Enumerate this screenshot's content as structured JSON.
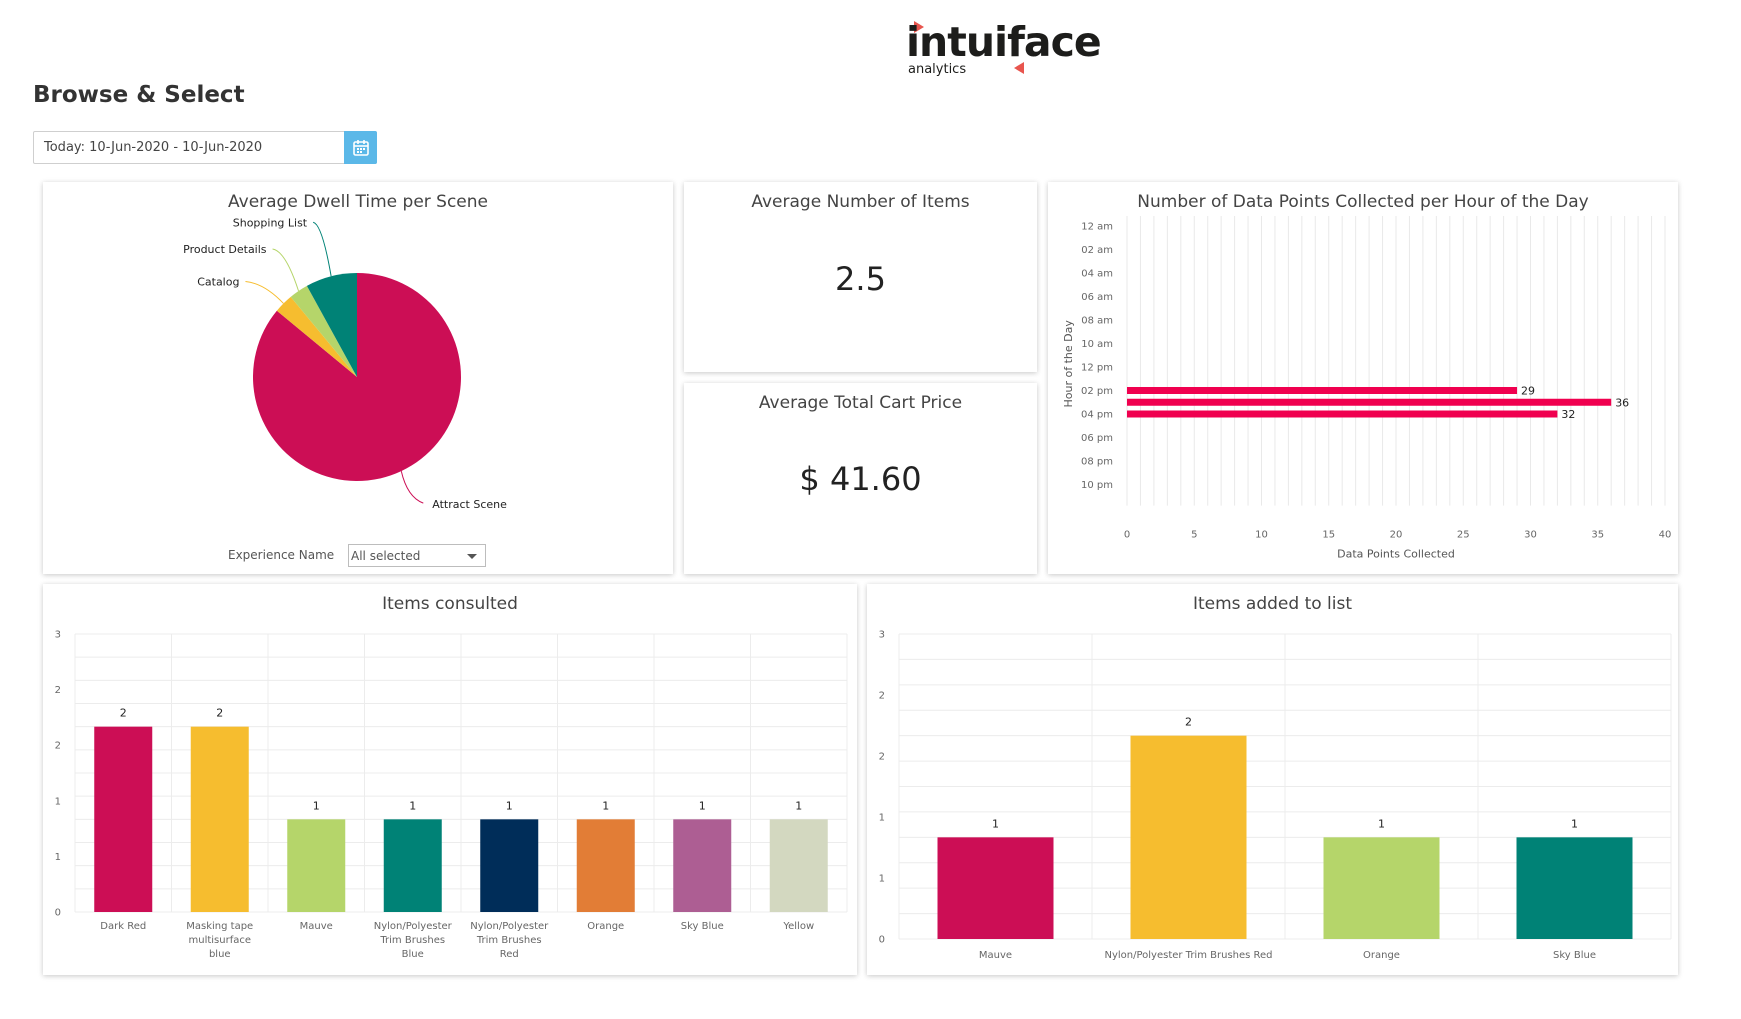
{
  "logo": {
    "word": "intuiface",
    "sub": "analytics"
  },
  "page": {
    "title": "Browse & Select"
  },
  "date_range": {
    "value": "Today: 10-Jun-2020 - 10-Jun-2020",
    "icon": "calendar-icon",
    "button_color": "#5bb8e8"
  },
  "dwell": {
    "title": "Average Dwell Time per Scene",
    "filter_label": "Experience Name",
    "filter_value": "All selected"
  },
  "kpi_items": {
    "title": "Average Number of Items",
    "value": "2.5"
  },
  "kpi_cart": {
    "title": "Average Total Cart Price",
    "value": "$ 41.60"
  },
  "hourly": {
    "title": "Number of Data Points Collected per Hour of the Day"
  },
  "consulted": {
    "title": "Items consulted"
  },
  "added": {
    "title": "Items added to list"
  },
  "chart_data": [
    {
      "id": "dwell",
      "type": "pie",
      "title": "Average Dwell Time per Scene",
      "slices": [
        {
          "label": "Attract Scene",
          "value": 86,
          "color": "#cc0e55"
        },
        {
          "label": "Catalog",
          "value": 3,
          "color": "#f6bd2f"
        },
        {
          "label": "Product Details",
          "value": 3,
          "color": "#b5d56a"
        },
        {
          "label": "Shopping List",
          "value": 8,
          "color": "#008276"
        }
      ]
    },
    {
      "id": "hourly",
      "type": "bar",
      "orientation": "horizontal",
      "title": "Number of Data Points Collected per Hour of the Day",
      "xlabel": "Data Points Collected",
      "ylabel": "Hour of the Day",
      "categories": [
        "12 am",
        "02 am",
        "04 am",
        "06 am",
        "08 am",
        "10 am",
        "12 pm",
        "02 pm",
        "04 pm",
        "06 pm",
        "08 pm",
        "10 pm"
      ],
      "bars": [
        {
          "at": "02 pm",
          "value": 29
        },
        {
          "at": "03 pm",
          "value": 36
        },
        {
          "at": "04 pm",
          "value": 32
        }
      ],
      "xlim": [
        0,
        40
      ],
      "xticks": [
        0,
        5,
        10,
        15,
        20,
        25,
        30,
        35,
        40
      ],
      "color": "#f0004f",
      "grid": true
    },
    {
      "id": "consulted",
      "type": "bar",
      "title": "Items consulted",
      "categories": [
        [
          "Dark Red"
        ],
        [
          "Masking tape",
          "multisurface",
          "blue"
        ],
        [
          "Mauve"
        ],
        [
          "Nylon/Polyester",
          "Trim Brushes",
          "Blue"
        ],
        [
          "Nylon/Polyester",
          "Trim Brushes",
          "Red"
        ],
        [
          "Orange"
        ],
        [
          "Sky Blue"
        ],
        [
          "Yellow"
        ]
      ],
      "values": [
        2,
        2,
        1,
        1,
        1,
        1,
        1,
        1
      ],
      "colors": [
        "#cc0e55",
        "#f6bd2f",
        "#b5d56a",
        "#008276",
        "#002d59",
        "#e27d36",
        "#ad5e93",
        "#d3d8c0"
      ],
      "ylim": [
        0,
        3
      ],
      "ytick_labels": [
        "0",
        "1",
        "1",
        "2",
        "2",
        "3"
      ],
      "grid": true
    },
    {
      "id": "added",
      "type": "bar",
      "title": "Items added to list",
      "categories": [
        [
          "Mauve"
        ],
        [
          "Nylon/Polyester Trim Brushes Red"
        ],
        [
          "Orange"
        ],
        [
          "Sky Blue"
        ]
      ],
      "values": [
        1,
        2,
        1,
        1
      ],
      "colors": [
        "#cc0e55",
        "#f6bd2f",
        "#b5d56a",
        "#008276"
      ],
      "ylim": [
        0,
        3
      ],
      "ytick_labels": [
        "0",
        "1",
        "1",
        "2",
        "2",
        "3"
      ],
      "grid": true
    }
  ]
}
